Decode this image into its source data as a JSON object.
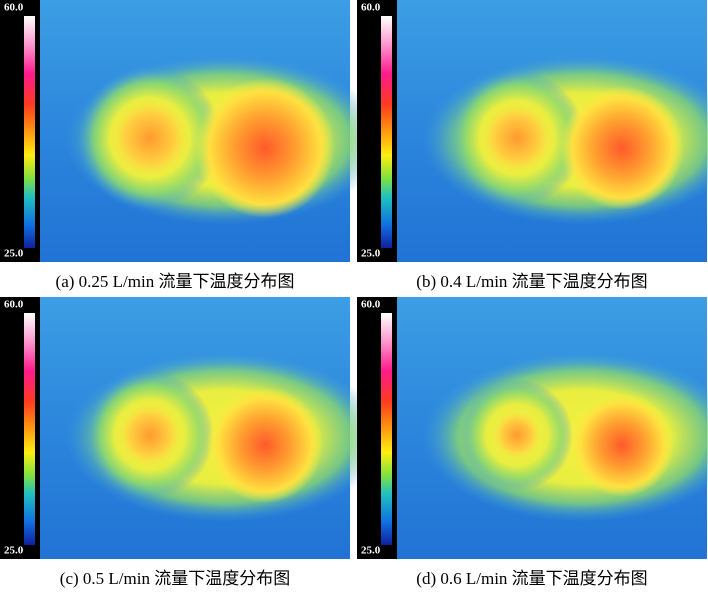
{
  "panels": [
    {
      "caption": "(a) 0.25 L/min 流量下温度分布图",
      "scale_max": "60.0",
      "scale_min": "25.0"
    },
    {
      "caption": "(b) 0.4 L/min 流量下温度分布图",
      "scale_max": "60.0",
      "scale_min": "25.0"
    },
    {
      "caption": "(c) 0.5 L/min 流量下温度分布图",
      "scale_max": "60.0",
      "scale_min": "25.0"
    },
    {
      "caption": "(d) 0.6 L/min 流量下温度分布图",
      "scale_max": "60.0",
      "scale_min": "25.0"
    }
  ]
}
